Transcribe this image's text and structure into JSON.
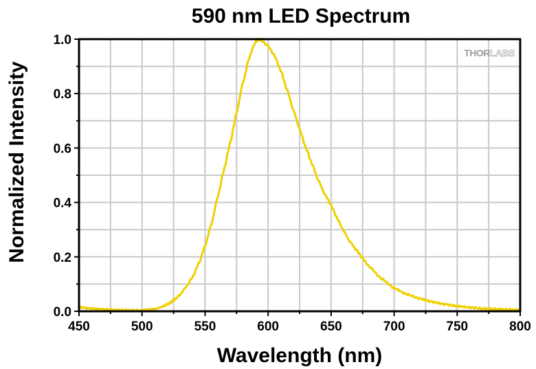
{
  "chart_data": {
    "type": "line",
    "title": "590 nm LED Spectrum",
    "xlabel": "Wavelength (nm)",
    "ylabel": "Normalized Intensity",
    "xlim": [
      450,
      800
    ],
    "ylim": [
      0.0,
      1.0
    ],
    "x_ticks": [
      450,
      500,
      550,
      600,
      650,
      700,
      750,
      800
    ],
    "x_tick_labels": [
      "450",
      "500",
      "550",
      "600",
      "650",
      "700",
      "750",
      "800"
    ],
    "x_minor_ticks": [
      475,
      525,
      575,
      625,
      675,
      725,
      775
    ],
    "y_ticks": [
      0.0,
      0.2,
      0.4,
      0.6,
      0.8,
      1.0
    ],
    "y_tick_labels": [
      "0.0",
      "0.2",
      "0.4",
      "0.6",
      "0.8",
      "1.0"
    ],
    "y_minor_ticks": [
      0.1,
      0.3,
      0.5,
      0.7,
      0.9
    ],
    "grid": true,
    "legend": "none",
    "watermark": {
      "text_bold": "THOR",
      "text_outline": "LABS"
    },
    "colors": {
      "series": "#f0d000",
      "grid": "#c8c8c8",
      "axis": "#000000"
    },
    "series": [
      {
        "name": "590 nm LED",
        "x": [
          450,
          460,
          470,
          480,
          490,
          500,
          505,
          510,
          515,
          520,
          525,
          530,
          535,
          540,
          545,
          550,
          555,
          560,
          565,
          570,
          575,
          580,
          585,
          588,
          590,
          593,
          596,
          600,
          605,
          610,
          615,
          620,
          625,
          630,
          635,
          640,
          645,
          650,
          655,
          660,
          665,
          670,
          675,
          680,
          690,
          700,
          710,
          720,
          730,
          740,
          750,
          760,
          770,
          780,
          790,
          800
        ],
        "y": [
          0.015,
          0.01,
          0.007,
          0.005,
          0.004,
          0.003,
          0.005,
          0.008,
          0.015,
          0.025,
          0.04,
          0.06,
          0.09,
          0.125,
          0.175,
          0.24,
          0.32,
          0.42,
          0.52,
          0.62,
          0.73,
          0.84,
          0.93,
          0.97,
          0.99,
          1.0,
          0.99,
          0.975,
          0.94,
          0.885,
          0.815,
          0.74,
          0.67,
          0.6,
          0.54,
          0.48,
          0.43,
          0.39,
          0.34,
          0.295,
          0.255,
          0.225,
          0.195,
          0.165,
          0.12,
          0.085,
          0.063,
          0.047,
          0.035,
          0.026,
          0.019,
          0.014,
          0.01,
          0.008,
          0.006,
          0.005
        ]
      }
    ]
  }
}
